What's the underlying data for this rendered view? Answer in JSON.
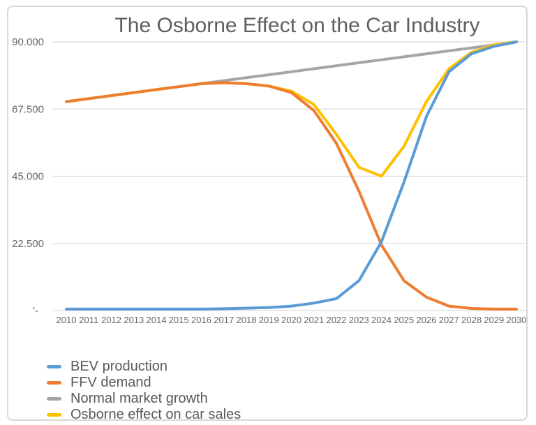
{
  "chart_data": {
    "type": "line",
    "title": "The Osborne Effect on the Car Industry",
    "x": [
      2010,
      2011,
      2012,
      2013,
      2014,
      2015,
      2016,
      2017,
      2018,
      2019,
      2020,
      2021,
      2022,
      2023,
      2024,
      2025,
      2026,
      2027,
      2028,
      2029,
      2030
    ],
    "series": [
      {
        "name": "BEV production",
        "color": "#5B9BD5",
        "values": [
          500,
          500,
          500,
          500,
          500,
          500,
          500,
          600,
          800,
          1000,
          1500,
          2500,
          4000,
          10000,
          23000,
          43000,
          65000,
          80000,
          86000,
          88500,
          90000
        ]
      },
      {
        "name": "FFV demand",
        "color": "#ED7D31",
        "values": [
          70000,
          71000,
          72000,
          73000,
          74000,
          75000,
          76000,
          76300,
          76000,
          75200,
          73000,
          67000,
          56000,
          40000,
          22000,
          10000,
          4500,
          1500,
          700,
          500,
          500
        ]
      },
      {
        "name": "Normal market growth",
        "color": "#A5A5A5",
        "values": [
          70000,
          71000,
          72000,
          73000,
          74000,
          75000,
          76000,
          77000,
          78000,
          79000,
          80000,
          81000,
          82000,
          83000,
          84000,
          85000,
          86000,
          87000,
          88000,
          89000,
          90000
        ]
      },
      {
        "name": "Osborne effect on car sales",
        "color": "#FFC000",
        "values": [
          70000,
          71000,
          72000,
          73000,
          74000,
          75000,
          76000,
          76300,
          76000,
          75200,
          73500,
          69000,
          59000,
          48000,
          45000,
          55000,
          70000,
          81000,
          86500,
          89000,
          90000
        ]
      }
    ],
    "y_axis": {
      "range": [
        0,
        90000
      ],
      "ticks": [
        {
          "value": 0,
          "label": "'-",
          "dx": -8
        },
        {
          "value": 22500,
          "label": "22.500",
          "dx": 0
        },
        {
          "value": 45000,
          "label": "45.000",
          "dx": 0
        },
        {
          "value": 67500,
          "label": "67.500",
          "dx": 0
        },
        {
          "value": 90000,
          "label": "90.000",
          "dx": 0
        }
      ]
    },
    "xlabel": "",
    "ylabel": "",
    "grid": "horizontal",
    "legend_position": "bottom-left"
  },
  "colors": {
    "gridline": "#dbdbdb",
    "card_border": "#d8d8d8",
    "title_text": "#5f5f5f",
    "tick_text": "#666666",
    "legend_text": "#595959",
    "background": "#ffffff"
  }
}
